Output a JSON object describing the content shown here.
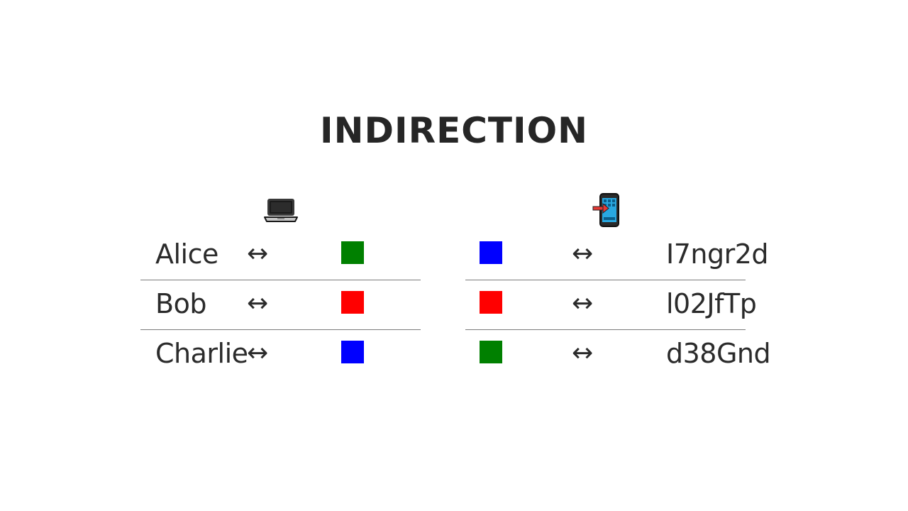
{
  "title": "INDIRECTION",
  "left_panel": {
    "icon": "laptop-icon",
    "rows": [
      {
        "name": "Alice",
        "arrow": "↔",
        "color": "#008000"
      },
      {
        "name": "Bob",
        "arrow": "↔",
        "color": "#ff0000"
      },
      {
        "name": "Charlie",
        "arrow": "↔",
        "color": "#0000ff"
      }
    ]
  },
  "right_panel": {
    "icon": "mobile-phone-with-arrow-icon",
    "rows": [
      {
        "color": "#0000ff",
        "arrow": "↔",
        "id": "I7ngr2d"
      },
      {
        "color": "#ff0000",
        "arrow": "↔",
        "id": "l02JfTp"
      },
      {
        "color": "#008000",
        "arrow": "↔",
        "id": "d38Gnd"
      }
    ]
  }
}
